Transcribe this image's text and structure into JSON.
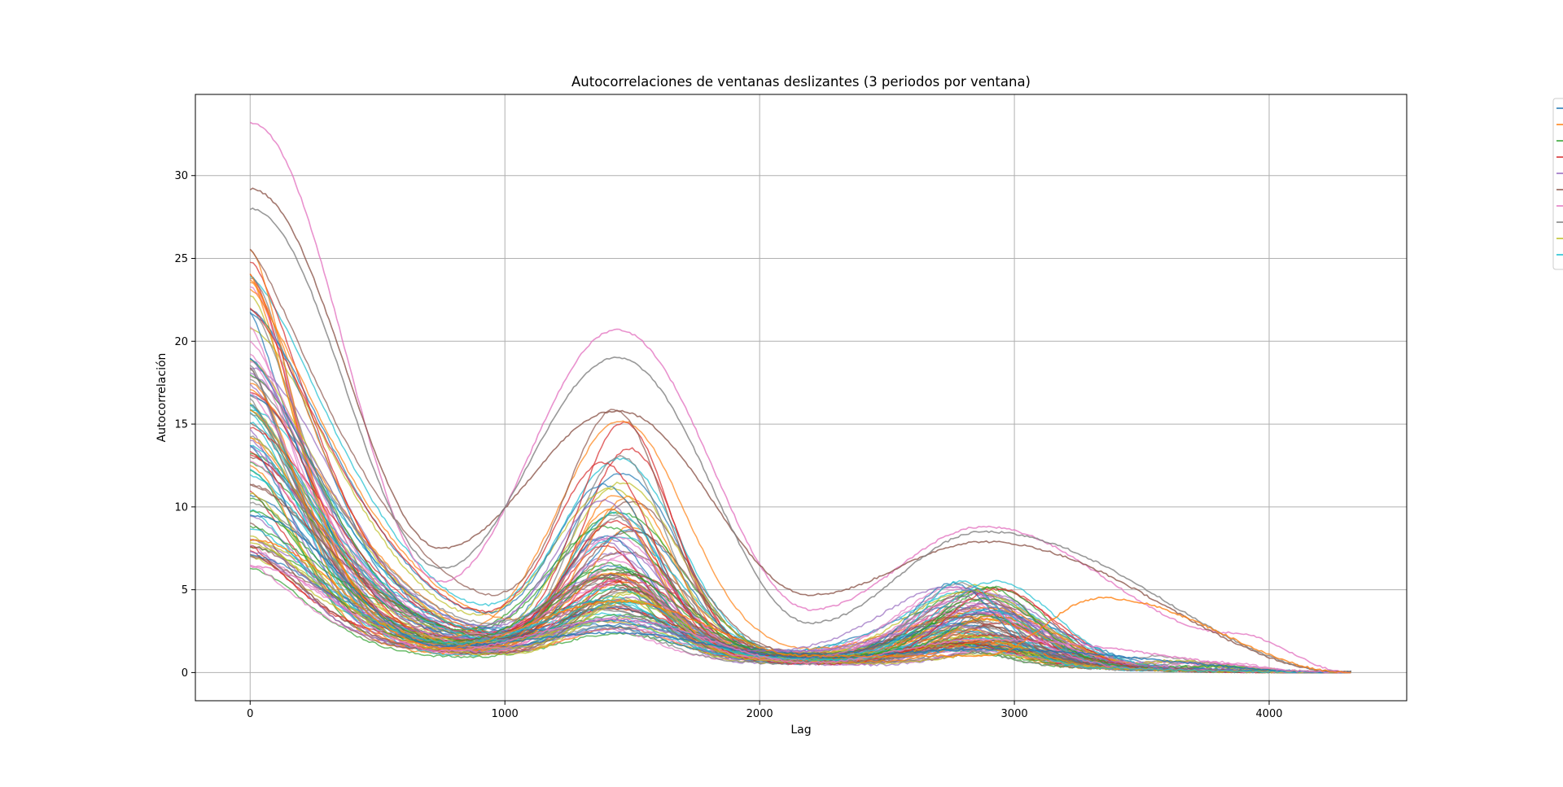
{
  "chart_data": {
    "type": "line",
    "title": "Autocorrelaciones de ventanas deslizantes (3 periodos por ventana)",
    "xlabel": "Lag",
    "ylabel": "Autocorrelación",
    "xlim": [
      -215,
      4540
    ],
    "ylim": [
      -1.7,
      34.9
    ],
    "xticks": [
      0,
      1000,
      2000,
      3000,
      4000
    ],
    "yticks": [
      0,
      5,
      10,
      15,
      20,
      25,
      30
    ],
    "grid": true,
    "legend": {
      "placement": "outside-right",
      "entries": 10
    },
    "palette": [
      "#1f77b4",
      "#ff7f0e",
      "#2ca02c",
      "#d62728",
      "#9467bd",
      "#8c564b",
      "#e377c2",
      "#7f7f7f",
      "#bcbd22",
      "#17becf"
    ],
    "x_end": 4320,
    "series_shape": {
      "peak_lags": [
        0,
        1440,
        2880
      ],
      "trough_lags": [
        750,
        2200
      ],
      "series_count": 100
    },
    "highlight_series": [
      {
        "color": "#e377c2",
        "values_at_lags": {
          "0": 33.2,
          "750": 5.5,
          "1440": 20.7,
          "2200": 3.8,
          "2880": 8.8,
          "3850": 2.4,
          "4320": 0
        }
      },
      {
        "color": "#8c564b",
        "values_at_lags": {
          "0": 29.2,
          "750": 7.5,
          "1440": 15.8,
          "2200": 4.7,
          "2880": 7.9,
          "4320": 0
        }
      },
      {
        "color": "#7f7f7f",
        "values_at_lags": {
          "0": 28.0,
          "750": 6.3,
          "1440": 19.0,
          "2200": 3.0,
          "2880": 8.5,
          "4320": 0
        }
      },
      {
        "color": "#1f77b4",
        "values_at_lags": {
          "0": 9.5,
          "750": 1.6,
          "1440": 2.4,
          "2200": 0.9,
          "2880": 1.4,
          "4320": 0
        }
      },
      {
        "color": "#e377c2",
        "values_at_lags": {
          "0": 6.4,
          "750": 1.3,
          "1440": 3.2,
          "2200": 0.6,
          "2880": 2.0,
          "4320": 0
        }
      },
      {
        "color": "#ff7f0e",
        "values_at_lags": {
          "0": 8.0,
          "750": 1.5,
          "1440": 4.3,
          "2200": 1.0,
          "2880": 1.0,
          "3340": 4.5,
          "4320": 0
        }
      }
    ]
  }
}
